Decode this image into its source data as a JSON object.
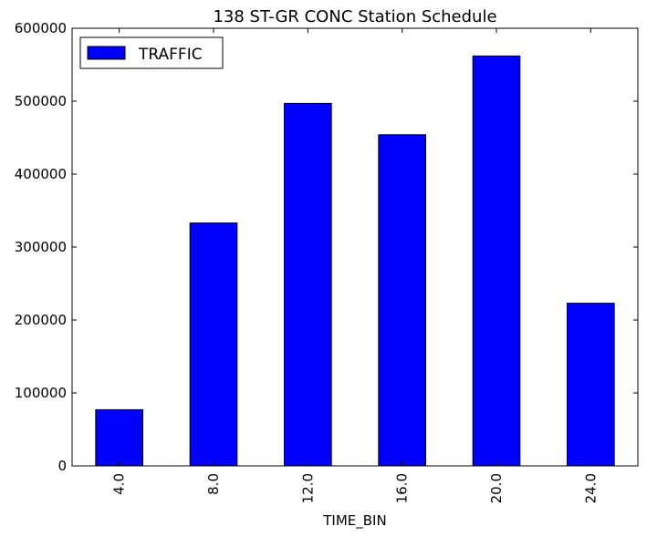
{
  "chart_data": {
    "type": "bar",
    "title": "138 ST-GR CONC Station Schedule",
    "xlabel": "TIME_BIN",
    "ylabel": "",
    "categories": [
      "4.0",
      "8.0",
      "12.0",
      "16.0",
      "20.0",
      "24.0"
    ],
    "series": [
      {
        "name": "TRAFFIC",
        "values": [
          77000,
          333000,
          497000,
          454000,
          562000,
          223000
        ]
      }
    ],
    "ylim": [
      0,
      600000
    ],
    "yticks": [
      0,
      100000,
      200000,
      300000,
      400000,
      500000,
      600000
    ],
    "ytick_labels": [
      "0",
      "100000",
      "200000",
      "300000",
      "400000",
      "500000",
      "600000"
    ],
    "grid": false,
    "legend_position": "top-left",
    "bar_color": "#0000ff",
    "edge_color": "#000000"
  }
}
